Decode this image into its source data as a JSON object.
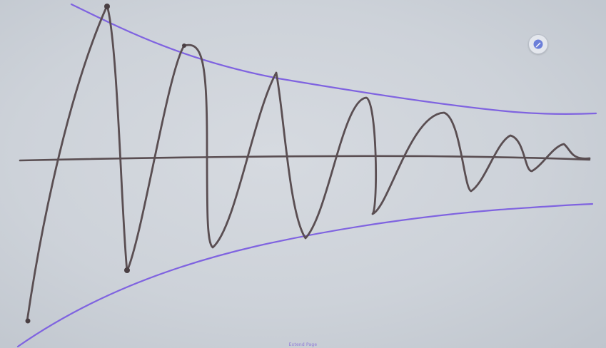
{
  "footer": {
    "label": "Extend Page"
  },
  "toolbar": {
    "pen_icon": "pen-icon"
  },
  "colors": {
    "signal": "#5a4e52",
    "envelope": "#7f63e0",
    "axis": "#5a4e52",
    "background": "#cfd4da"
  }
}
